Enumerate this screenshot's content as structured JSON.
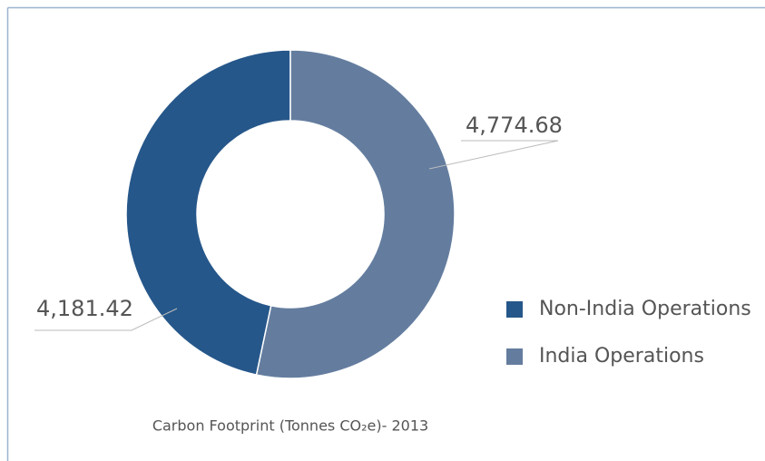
{
  "chart_data": {
    "type": "pie",
    "donut": true,
    "title": "Carbon Footprint (Tonnes CO₂e)- 2013",
    "categories": [
      "Non-India Operations",
      "India Operations"
    ],
    "values": [
      4181.42,
      4774.68
    ],
    "value_labels": [
      "4,181.42",
      "4,774.68"
    ],
    "colors": [
      "#26578a",
      "#647d9f"
    ],
    "legend": "right"
  }
}
